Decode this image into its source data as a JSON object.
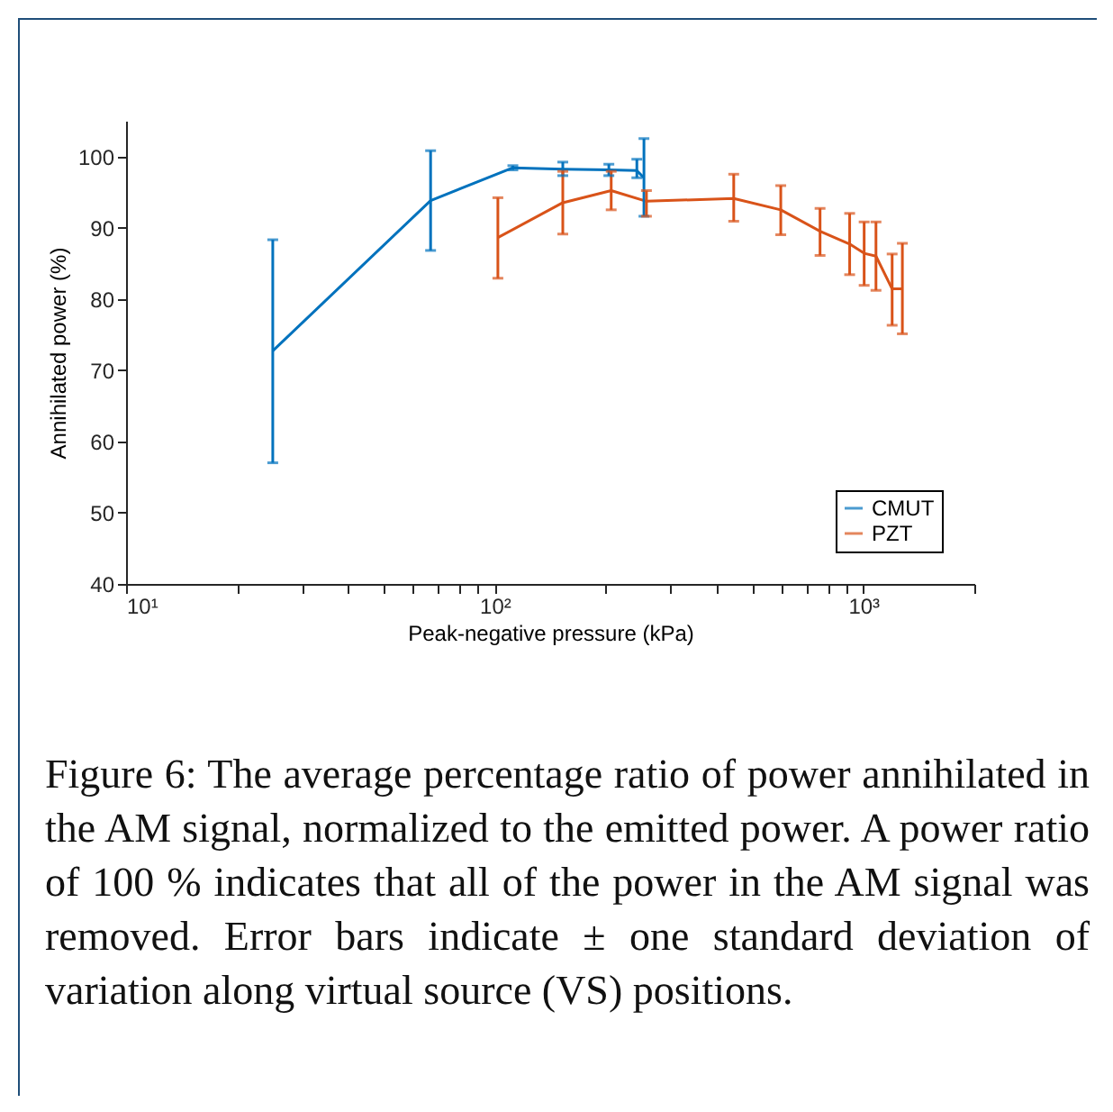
{
  "chart_data": {
    "type": "line",
    "xlabel": "Peak-negative pressure (kPa)",
    "ylabel": "Annihilated power (%)",
    "log": "x",
    "xlim": [
      10,
      2000
    ],
    "xticks": [
      {
        "value": 10,
        "label": "10¹"
      },
      {
        "value": 20,
        "label": null
      },
      {
        "value": 30,
        "label": null
      },
      {
        "value": 40,
        "label": null
      },
      {
        "value": 50,
        "label": null
      },
      {
        "value": 60,
        "label": null
      },
      {
        "value": 70,
        "label": null
      },
      {
        "value": 80,
        "label": null
      },
      {
        "value": 90,
        "label": null
      },
      {
        "value": 100,
        "label": "10²"
      },
      {
        "value": 200,
        "label": null
      },
      {
        "value": 300,
        "label": null
      },
      {
        "value": 400,
        "label": null
      },
      {
        "value": 500,
        "label": null
      },
      {
        "value": 600,
        "label": null
      },
      {
        "value": 700,
        "label": null
      },
      {
        "value": 800,
        "label": null
      },
      {
        "value": 900,
        "label": null
      },
      {
        "value": 1000,
        "label": "10³"
      },
      {
        "value": 2000,
        "label": null
      }
    ],
    "ylim": [
      40,
      105
    ],
    "yticks": [
      40,
      50,
      60,
      70,
      80,
      90,
      100
    ],
    "grid": false,
    "legend": "bottom right",
    "marker": "none",
    "line_style": "solid",
    "series": [
      {
        "name": "CMUT",
        "color": "#0072bd",
        "x": [
          25,
          67,
          112,
          153,
          204,
          243,
          254
        ],
        "values": [
          72.7,
          93.8,
          98.4,
          98.2,
          98.1,
          98.0,
          97.0
        ],
        "errors": [
          [
            57.0,
            88.3
          ],
          [
            86.8,
            100.8
          ],
          [
            98.1,
            98.7
          ],
          [
            97.3,
            99.2
          ],
          [
            97.3,
            98.9
          ],
          [
            97.0,
            99.6
          ],
          [
            91.6,
            102.5
          ]
        ]
      },
      {
        "name": "PZT",
        "color": "#d95319",
        "x": [
          102,
          153,
          207,
          258,
          445,
          597,
          763,
          918,
          1005,
          1082,
          1197,
          1276
        ],
        "values": [
          88.6,
          93.5,
          95.2,
          93.7,
          94.1,
          92.5,
          89.5,
          87.7,
          86.4,
          86.0,
          81.4,
          81.4
        ],
        "errors": [
          [
            82.9,
            94.2
          ],
          [
            89.1,
            97.9
          ],
          [
            92.5,
            97.9
          ],
          [
            91.6,
            95.2
          ],
          [
            90.9,
            97.5
          ],
          [
            89.0,
            95.9
          ],
          [
            86.1,
            92.7
          ],
          [
            83.4,
            92.0
          ],
          [
            81.9,
            90.8
          ],
          [
            81.2,
            90.8
          ],
          [
            76.3,
            86.3
          ],
          [
            75.1,
            87.8
          ]
        ]
      }
    ],
    "annotations": [
      "Figure 6: The average percentage ratio of power annihilated in the AM signal, normalized to the emitted power. A power ratio of 100 % indicates that all of the power in the AM signal was removed. Error bars indicate ± one standard deviation of variation along virtual source (VS) positions."
    ]
  }
}
